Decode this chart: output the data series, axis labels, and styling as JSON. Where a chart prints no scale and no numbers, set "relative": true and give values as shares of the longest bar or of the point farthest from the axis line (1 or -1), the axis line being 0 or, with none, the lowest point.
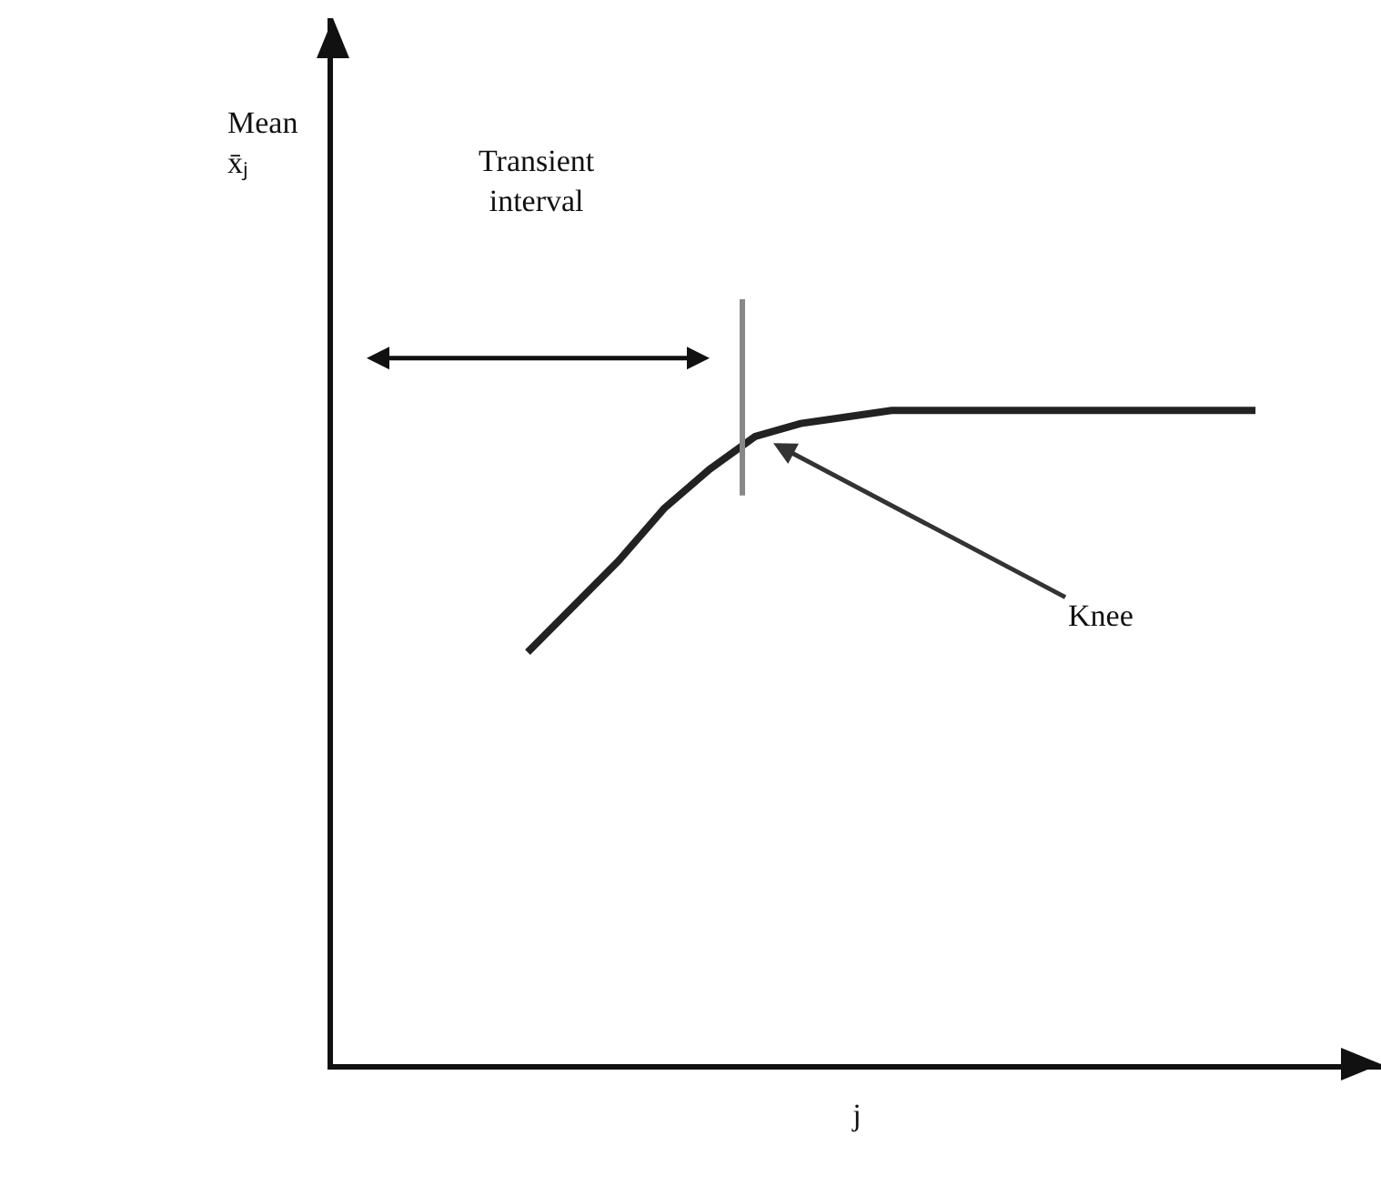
{
  "chart_data": {
    "type": "line",
    "relative": true,
    "categories": [
      null,
      null,
      null,
      null,
      null,
      null,
      null,
      null,
      null,
      null,
      null,
      null,
      null,
      null,
      null,
      null,
      null,
      null,
      null,
      null,
      null,
      null
    ],
    "series": [
      {
        "color": "#222222",
        "values": [
          null,
          null,
          null,
          null,
          0.63,
          0.7,
          0.77,
          0.85,
          0.91,
          0.96,
          0.98,
          0.99,
          1,
          1,
          1,
          1,
          1,
          1,
          1,
          1,
          1,
          null
        ]
      }
    ],
    "xlabel": "j",
    "annotations": [
      "Mean x̄ⱼ",
      "Transient interval",
      "Knee"
    ],
    "marker": "none",
    "line_style": "solid"
  }
}
